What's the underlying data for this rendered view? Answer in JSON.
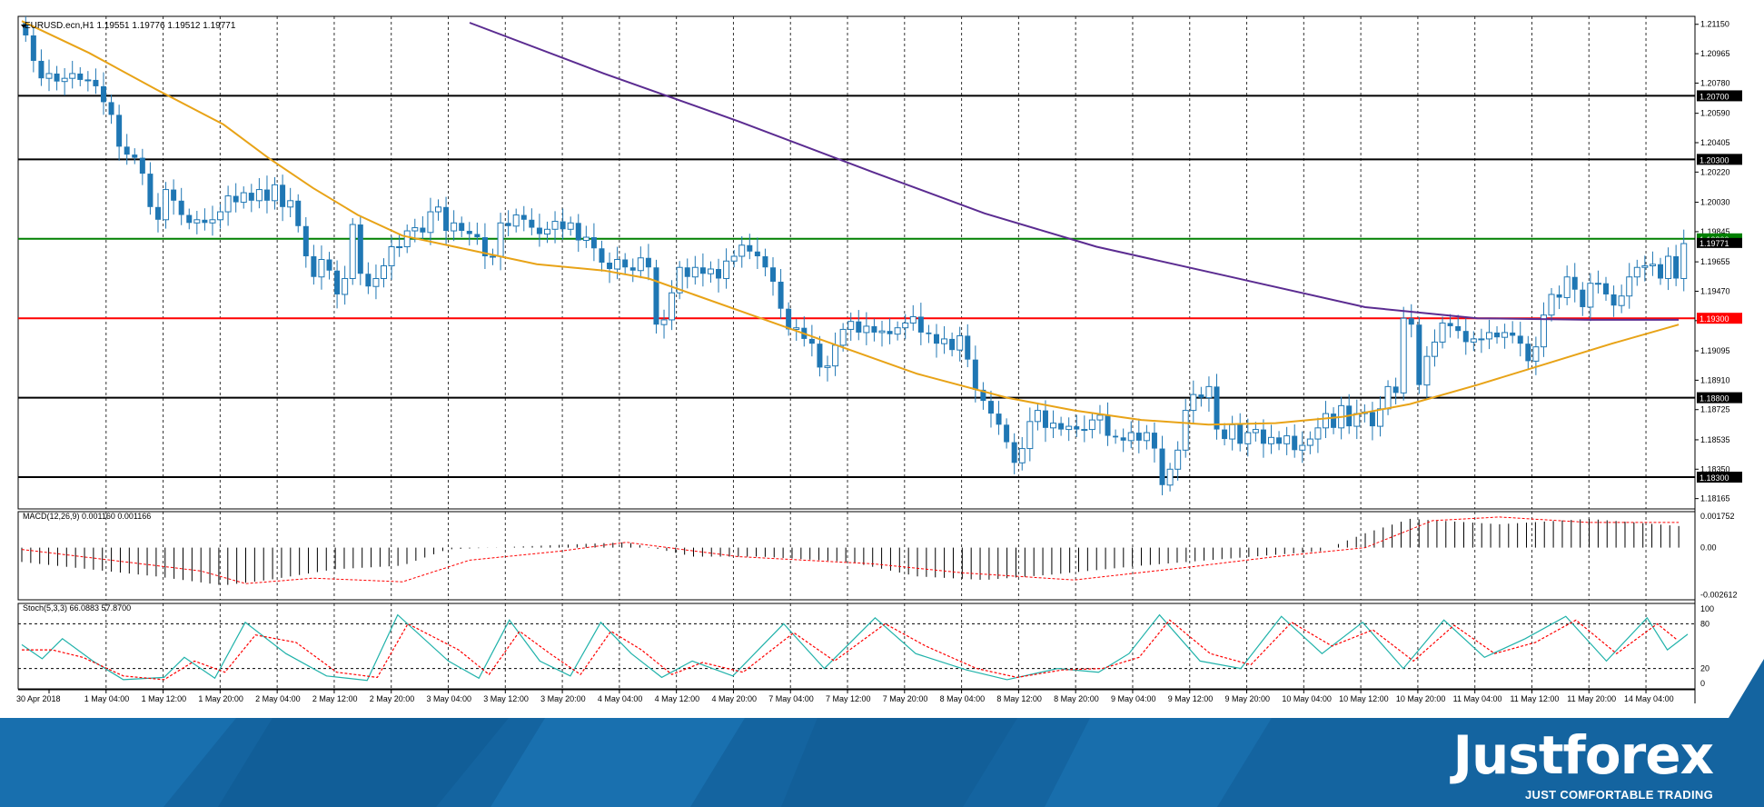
{
  "chart_data": {
    "type": "line",
    "main": {
      "symbol_header": "EURUSD.ecn,H1  1.19551 1.19776 1.19512 1.19771",
      "ylim": [
        1.181,
        1.212
      ],
      "y_ticks": [
        "1.21150",
        "1.20965",
        "1.20780",
        "1.20590",
        "1.20405",
        "1.20220",
        "1.20030",
        "1.19845",
        "1.19655",
        "1.19470",
        "1.19285",
        "1.19095",
        "1.18910",
        "1.18725",
        "1.18535",
        "1.18350",
        "1.18165"
      ],
      "current_price_label": "1.19771",
      "levels": [
        {
          "value": 1.207,
          "label": "1.20700",
          "color": "#000000"
        },
        {
          "value": 1.203,
          "label": "1.20300",
          "color": "#000000"
        },
        {
          "value": 1.198,
          "label": "1.19800",
          "color": "#008000"
        },
        {
          "value": 1.193,
          "label": "1.19300",
          "color": "#ff0000"
        },
        {
          "value": 1.188,
          "label": "1.18800",
          "color": "#000000"
        },
        {
          "value": 1.183,
          "label": "1.18300",
          "color": "#000000"
        }
      ],
      "candles_close": [
        1.2108,
        1.2092,
        1.2081,
        1.2084,
        1.2079,
        1.2081,
        1.2084,
        1.208,
        1.208,
        1.2076,
        1.2066,
        1.2058,
        1.2038,
        1.2033,
        1.2031,
        1.2021,
        1.2,
        1.1992,
        1.2011,
        1.2004,
        1.1995,
        1.199,
        1.1992,
        1.199,
        1.1992,
        1.1997,
        1.2007,
        1.2003,
        1.2009,
        1.2004,
        1.2011,
        1.2004,
        1.2014,
        1.2,
        1.2004,
        1.1988,
        1.1969,
        1.1956,
        1.1967,
        1.196,
        1.1945,
        1.1955,
        1.1989,
        1.1958,
        1.195,
        1.1955,
        1.1963,
        1.1975,
        1.1975,
        1.1985,
        1.1987,
        1.1984,
        1.1997,
        1.2,
        1.1985,
        1.199,
        1.1985,
        1.1983,
        1.1981,
        1.1969,
        1.1969,
        1.199,
        1.1988,
        1.1995,
        1.1992,
        1.1987,
        1.1983,
        1.1986,
        1.1991,
        1.1986,
        1.199,
        1.1979,
        1.1981,
        1.1974,
        1.1965,
        1.1961,
        1.1967,
        1.1962,
        1.196,
        1.1968,
        1.1962,
        1.1926,
        1.1929,
        1.1946,
        1.1962,
        1.1956,
        1.1962,
        1.1958,
        1.1961,
        1.1955,
        1.1966,
        1.1969,
        1.1976,
        1.1972,
        1.1969,
        1.1962,
        1.1953,
        1.1936,
        1.1923,
        1.1924,
        1.1917,
        1.1914,
        1.1899,
        1.19,
        1.1913,
        1.1923,
        1.1928,
        1.1921,
        1.1925,
        1.1921,
        1.1922,
        1.192,
        1.1924,
        1.1927,
        1.1931,
        1.1921,
        1.192,
        1.1914,
        1.1917,
        1.191,
        1.1919,
        1.1904,
        1.1885,
        1.1878,
        1.187,
        1.1863,
        1.1852,
        1.1839,
        1.1848,
        1.1865,
        1.1872,
        1.1861,
        1.1864,
        1.186,
        1.1862,
        1.186,
        1.186,
        1.1866,
        1.1869,
        1.1856,
        1.1855,
        1.1853,
        1.1858,
        1.1853,
        1.1858,
        1.1848,
        1.1825,
        1.1835,
        1.1847,
        1.1872,
        1.1882,
        1.188,
        1.1887,
        1.186,
        1.1854,
        1.1863,
        1.1851,
        1.1858,
        1.186,
        1.1851,
        1.1855,
        1.1851,
        1.1856,
        1.1847,
        1.185,
        1.1854,
        1.1861,
        1.187,
        1.1861,
        1.1875,
        1.1862,
        1.187,
        1.1871,
        1.1862,
        1.1873,
        1.1887,
        1.1883,
        1.193,
        1.1926,
        1.1888,
        1.1906,
        1.1915,
        1.1927,
        1.1925,
        1.1922,
        1.1915,
        1.1917,
        1.1917,
        1.1921,
        1.1918,
        1.1921,
        1.1919,
        1.1914,
        1.1903,
        1.1912,
        1.1932,
        1.1945,
        1.1943,
        1.1956,
        1.1948,
        1.1937,
        1.1952,
        1.1952,
        1.1945,
        1.1938,
        1.1944,
        1.1956,
        1.1962,
        1.1963,
        1.1964,
        1.1955,
        1.1969,
        1.1955,
        1.1977
      ],
      "ema_fast_points": [
        [
          0,
          1.2117
        ],
        [
          30,
          1.2097
        ],
        [
          60,
          1.2074
        ],
        [
          90,
          1.2052
        ],
        [
          110,
          1.2031
        ],
        [
          130,
          1.2012
        ],
        [
          150,
          1.1995
        ],
        [
          170,
          1.1982
        ],
        [
          200,
          1.1973
        ],
        [
          230,
          1.1964
        ],
        [
          260,
          1.196
        ],
        [
          280,
          1.1955
        ],
        [
          300,
          1.1945
        ],
        [
          330,
          1.193
        ],
        [
          360,
          1.1915
        ],
        [
          400,
          1.1895
        ],
        [
          440,
          1.188
        ],
        [
          470,
          1.1872
        ],
        [
          500,
          1.1866
        ],
        [
          530,
          1.1863
        ],
        [
          560,
          1.1864
        ],
        [
          590,
          1.1868
        ],
        [
          620,
          1.1876
        ],
        [
          650,
          1.1888
        ],
        [
          680,
          1.1901
        ],
        [
          710,
          1.1914
        ],
        [
          740,
          1.1926
        ]
      ],
      "ema_slow_points": [
        [
          200,
          1.2116
        ],
        [
          260,
          1.2084
        ],
        [
          320,
          1.2054
        ],
        [
          380,
          1.2022
        ],
        [
          430,
          1.1996
        ],
        [
          480,
          1.1975
        ],
        [
          540,
          1.1956
        ],
        [
          600,
          1.1937
        ],
        [
          650,
          1.193
        ],
        [
          700,
          1.1929
        ],
        [
          740,
          1.1929
        ]
      ]
    },
    "macd": {
      "header": "MACD(12,26,9) 0.001160 0.001166",
      "y_ticks": [
        "0.001752",
        "0.00",
        "-0.002612"
      ],
      "ylim": [
        -0.0029,
        0.002
      ],
      "histogram_points": [
        [
          0,
          -0.0008
        ],
        [
          60,
          -0.0016
        ],
        [
          90,
          -0.0021
        ],
        [
          110,
          -0.0018
        ],
        [
          140,
          -0.0012
        ],
        [
          170,
          -0.001
        ],
        [
          190,
          -0.0001
        ],
        [
          230,
          0.0001
        ],
        [
          270,
          0.0003
        ],
        [
          300,
          -0.0005
        ],
        [
          330,
          -0.0005
        ],
        [
          370,
          -0.0008
        ],
        [
          400,
          -0.0016
        ],
        [
          430,
          -0.0018
        ],
        [
          460,
          -0.0015
        ],
        [
          500,
          -0.001
        ],
        [
          540,
          -0.0006
        ],
        [
          580,
          -0.0002
        ],
        [
          600,
          0.0008
        ],
        [
          620,
          0.0016
        ],
        [
          660,
          0.0013
        ],
        [
          700,
          0.0016
        ],
        [
          740,
          0.0012
        ]
      ],
      "signal_points": [
        [
          0,
          -0.0001
        ],
        [
          80,
          -0.0013
        ],
        [
          100,
          -0.002
        ],
        [
          130,
          -0.0017
        ],
        [
          170,
          -0.0019
        ],
        [
          200,
          -0.0007
        ],
        [
          240,
          -0.0002
        ],
        [
          270,
          0.0003
        ],
        [
          320,
          -0.0005
        ],
        [
          380,
          -0.0009
        ],
        [
          420,
          -0.0014
        ],
        [
          470,
          -0.0018
        ],
        [
          520,
          -0.0011
        ],
        [
          560,
          -0.0005
        ],
        [
          600,
          0.0
        ],
        [
          630,
          0.0015
        ],
        [
          660,
          0.0017
        ],
        [
          700,
          0.0014
        ],
        [
          740,
          0.0014
        ]
      ]
    },
    "stoch": {
      "header": "Stoch(5,3,3) 66.0883 57.8700",
      "y_ticks": [
        "100",
        "80",
        "20",
        "0"
      ],
      "ylim": [
        0,
        100
      ],
      "main_points": [
        [
          0,
          52
        ],
        [
          10,
          33
        ],
        [
          20,
          60
        ],
        [
          35,
          30
        ],
        [
          50,
          5
        ],
        [
          70,
          8
        ],
        [
          80,
          35
        ],
        [
          95,
          7
        ],
        [
          110,
          82
        ],
        [
          130,
          40
        ],
        [
          150,
          10
        ],
        [
          170,
          4
        ],
        [
          185,
          92
        ],
        [
          210,
          30
        ],
        [
          225,
          7
        ],
        [
          240,
          85
        ],
        [
          255,
          30
        ],
        [
          270,
          10
        ],
        [
          285,
          82
        ],
        [
          300,
          40
        ],
        [
          315,
          8
        ],
        [
          330,
          30
        ],
        [
          350,
          10
        ],
        [
          375,
          80
        ],
        [
          395,
          20
        ],
        [
          420,
          88
        ],
        [
          440,
          40
        ],
        [
          465,
          18
        ],
        [
          485,
          5
        ],
        [
          510,
          20
        ],
        [
          530,
          15
        ],
        [
          545,
          40
        ],
        [
          560,
          92
        ],
        [
          580,
          30
        ],
        [
          600,
          20
        ],
        [
          620,
          90
        ],
        [
          640,
          40
        ],
        [
          660,
          82
        ],
        [
          680,
          20
        ],
        [
          700,
          85
        ],
        [
          720,
          35
        ],
        [
          740,
          60
        ],
        [
          760,
          90
        ],
        [
          780,
          30
        ],
        [
          800,
          88
        ],
        [
          810,
          45
        ],
        [
          820,
          66
        ]
      ],
      "signal_points": [
        [
          0,
          45
        ],
        [
          15,
          45
        ],
        [
          30,
          35
        ],
        [
          50,
          10
        ],
        [
          70,
          5
        ],
        [
          85,
          30
        ],
        [
          100,
          15
        ],
        [
          115,
          65
        ],
        [
          135,
          55
        ],
        [
          155,
          15
        ],
        [
          175,
          8
        ],
        [
          190,
          80
        ],
        [
          215,
          45
        ],
        [
          230,
          12
        ],
        [
          245,
          70
        ],
        [
          260,
          40
        ],
        [
          275,
          12
        ],
        [
          290,
          70
        ],
        [
          305,
          45
        ],
        [
          320,
          12
        ],
        [
          335,
          28
        ],
        [
          355,
          15
        ],
        [
          380,
          68
        ],
        [
          400,
          30
        ],
        [
          425,
          80
        ],
        [
          445,
          50
        ],
        [
          470,
          20
        ],
        [
          490,
          8
        ],
        [
          512,
          18
        ],
        [
          532,
          20
        ],
        [
          550,
          35
        ],
        [
          565,
          85
        ],
        [
          585,
          40
        ],
        [
          605,
          25
        ],
        [
          625,
          82
        ],
        [
          645,
          50
        ],
        [
          665,
          72
        ],
        [
          685,
          30
        ],
        [
          705,
          78
        ],
        [
          725,
          40
        ],
        [
          745,
          55
        ],
        [
          765,
          85
        ],
        [
          785,
          40
        ],
        [
          805,
          80
        ],
        [
          815,
          58
        ]
      ]
    },
    "x_tick_labels": [
      "30 Apr 2018",
      "1 May 04:00",
      "1 May 12:00",
      "1 May 20:00",
      "2 May 04:00",
      "2 May 12:00",
      "2 May 20:00",
      "3 May 04:00",
      "3 May 12:00",
      "3 May 20:00",
      "4 May 04:00",
      "4 May 12:00",
      "4 May 20:00",
      "7 May 04:00",
      "7 May 12:00",
      "7 May 20:00",
      "8 May 04:00",
      "8 May 12:00",
      "8 May 20:00",
      "9 May 04:00",
      "9 May 12:00",
      "9 May 20:00",
      "10 May 04:00",
      "10 May 12:00",
      "10 May 20:00",
      "11 May 04:00",
      "11 May 12:00",
      "11 May 20:00",
      "14 May 04:00"
    ],
    "colors": {
      "bull_candle": "#1f77b4",
      "bear_candle": "#1f77b4",
      "ema_fast": "#e8a317",
      "ema_slow": "#5b2c91",
      "macd_hist": "#000000",
      "macd_signal": "#ff0000",
      "stoch_main": "#20b2aa",
      "stoch_signal": "#ff0000"
    }
  },
  "branding": {
    "logo_word": "Justforex",
    "logo_tagline": "JUST COMFORTABLE TRADING",
    "banner_color": "#1464a0"
  }
}
